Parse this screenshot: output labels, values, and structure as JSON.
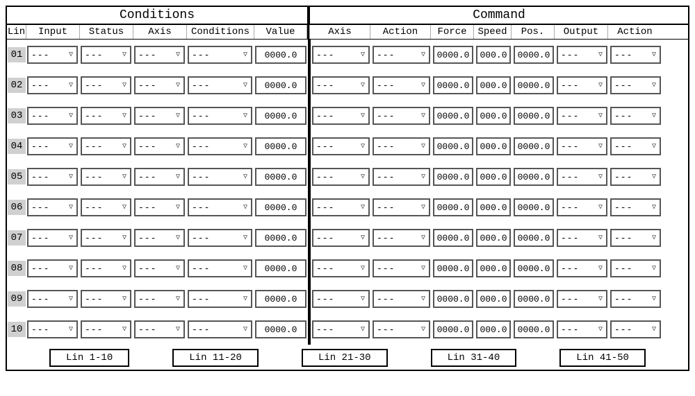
{
  "headers": {
    "conditions": "Conditions",
    "command": "Command"
  },
  "columns": {
    "lin": "Lin",
    "input": "Input",
    "status": "Status",
    "axis1": "Axis",
    "cond": "Conditions",
    "value": "Value",
    "axis2": "Axis",
    "action1": "Action",
    "force": "Force",
    "speed": "Speed",
    "pos": "Pos.",
    "output": "Output",
    "action2": "Action"
  },
  "dropdown_placeholder": "---",
  "value_placeholder": "0000.0",
  "speed_placeholder": "000.0",
  "rows": [
    {
      "no": "01"
    },
    {
      "no": "02"
    },
    {
      "no": "03"
    },
    {
      "no": "04"
    },
    {
      "no": "05"
    },
    {
      "no": "06"
    },
    {
      "no": "07"
    },
    {
      "no": "08"
    },
    {
      "no": "09"
    },
    {
      "no": "10"
    }
  ],
  "footer_buttons": {
    "b1": "Lin 1-10",
    "b2": "Lin 11-20",
    "b3": "Lin 21-30",
    "b4": "Lin 31-40",
    "b5": "Lin 41-50"
  },
  "style": {
    "border_color": "#000000",
    "field_border_color": "#555555",
    "linno_bg": "#d0d0d0",
    "background": "#ffffff",
    "font_family": "Courier New, monospace"
  }
}
